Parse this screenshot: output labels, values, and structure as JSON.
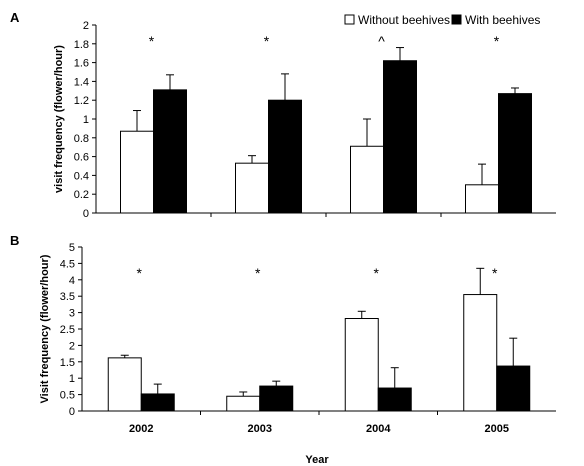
{
  "chart_data": [
    {
      "type": "bar",
      "panel_label": "A",
      "ylabel": "visit frequency (flower/hour)",
      "xlabel": "",
      "ylim": [
        0,
        2
      ],
      "yticks": [
        "0",
        "0.2",
        "0.4",
        "0.6",
        "0.8",
        "1",
        "1.2",
        "1.4",
        "1.6",
        "1.8",
        "2"
      ],
      "categories": [
        "2002",
        "2003",
        "2004",
        "2005"
      ],
      "series": [
        {
          "name": "Without beehives",
          "color": "#ffffff",
          "values": [
            0.87,
            0.53,
            0.71,
            0.3
          ],
          "errors": [
            0.22,
            0.08,
            0.29,
            0.22
          ]
        },
        {
          "name": "With beehives",
          "color": "#000000",
          "values": [
            1.31,
            1.2,
            1.62,
            1.27
          ],
          "errors": [
            0.16,
            0.28,
            0.14,
            0.06
          ]
        }
      ],
      "annotations": [
        "*",
        "*",
        "^",
        "*"
      ],
      "legend": {
        "position": "top-right",
        "items": [
          "Without beehives",
          "With beehives"
        ]
      }
    },
    {
      "type": "bar",
      "panel_label": "B",
      "ylabel": "Visit frequency (flower/hour)",
      "xlabel": "Year",
      "ylim": [
        0,
        5
      ],
      "yticks": [
        "0",
        "0.5",
        "1",
        "1.5",
        "2",
        "2.5",
        "3",
        "3.5",
        "4",
        "4.5",
        "5"
      ],
      "categories": [
        "2002",
        "2003",
        "2004",
        "2005"
      ],
      "series": [
        {
          "name": "Without beehives",
          "color": "#ffffff",
          "values": [
            1.62,
            0.45,
            2.82,
            3.55
          ],
          "errors": [
            0.08,
            0.13,
            0.22,
            0.8
          ]
        },
        {
          "name": "With beehives",
          "color": "#000000",
          "values": [
            0.52,
            0.76,
            0.7,
            1.37
          ],
          "errors": [
            0.3,
            0.15,
            0.62,
            0.85
          ]
        }
      ],
      "annotations": [
        "*",
        "*",
        "*",
        "*"
      ]
    }
  ]
}
